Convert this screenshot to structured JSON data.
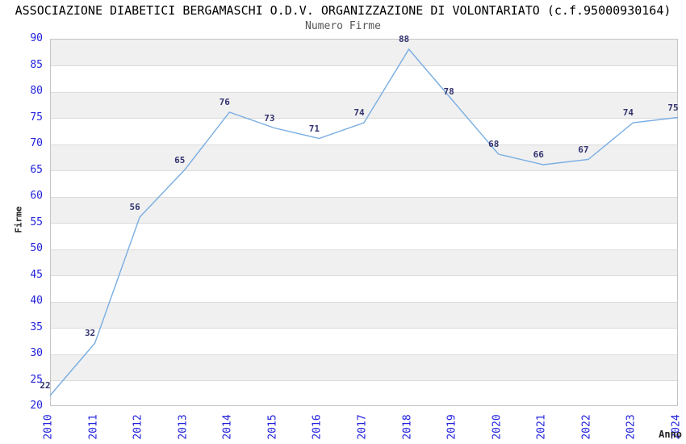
{
  "chart_data": {
    "type": "line",
    "title": "ASSOCIAZIONE DIABETICI BERGAMASCHI O.D.V. ORGANIZZAZIONE DI VOLONTARIATO (c.f.95000930164)",
    "subtitle": "Numero Firme",
    "xlabel": "Anno",
    "ylabel": "Firme",
    "categories": [
      "2010",
      "2011",
      "2012",
      "2013",
      "2014",
      "2015",
      "2016",
      "2017",
      "2018",
      "2019",
      "2020",
      "2021",
      "2022",
      "2023",
      "2024"
    ],
    "series": [
      {
        "name": "Numero Firme",
        "values": [
          22,
          32,
          56,
          65,
          76,
          73,
          71,
          74,
          88,
          78,
          68,
          66,
          67,
          74,
          75
        ]
      }
    ],
    "ylim": [
      20,
      90
    ],
    "ytick_step": 5,
    "grid": "horizontal gridlines with alternating gray bands every 5 units",
    "legend": "none",
    "point_labels_shown": true,
    "x_tick_rotation_deg": 90,
    "colors": {
      "line": "#79ADE2",
      "tick_label": "#2222DD",
      "value_label": "#333370",
      "band": "#F0F0F0",
      "grid_line": "#DBDBDB",
      "frame": "#C4C4C4",
      "title": "#000000",
      "subtitle": "#555555",
      "axis_title": "#222222"
    }
  }
}
